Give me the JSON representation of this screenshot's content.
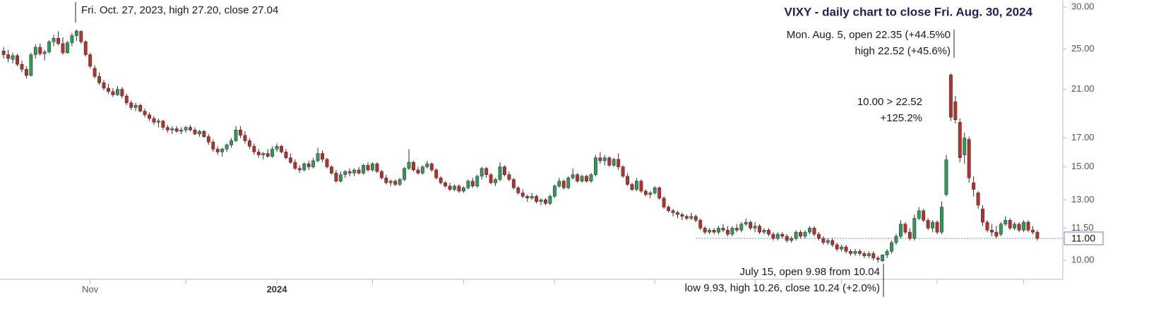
{
  "chart_data": {
    "type": "candlestick",
    "title": "VIXY - daily chart to close Fri. Aug. 30, 2024",
    "annotations": [
      {
        "lines": [
          "Fri. Oct. 27, 2023, high 27.20, close 27.04"
        ]
      },
      {
        "lines": [
          "Mon. Aug. 5, open 22.35 (+44.5%0",
          "high 22.52 (+45.6%)"
        ]
      },
      {
        "lines": [
          "10.00 > 22.52",
          "+125.2%"
        ]
      },
      {
        "lines": [
          "July 15, open 9.98 from 10.04",
          "low 9.93, high 10.26, close 10.24 (+2.0%)"
        ]
      }
    ],
    "up_color": "#2e9a5c",
    "down_color": "#b3322e",
    "last_price_color": "#5b7fc4",
    "log_scale": true,
    "xlim": [
      -0.8,
      232.6
    ],
    "xticks": [
      {
        "value": 19,
        "label": "Nov"
      },
      {
        "value": 40,
        "label": null
      },
      {
        "value": 60,
        "label": "2024"
      },
      {
        "value": 81,
        "label": null
      },
      {
        "value": 101,
        "label": null
      },
      {
        "value": 121,
        "label": null
      },
      {
        "value": 143,
        "label": null
      },
      {
        "value": 165,
        "label": null
      },
      {
        "value": 184,
        "label": null
      },
      {
        "value": 205,
        "label": null
      },
      {
        "value": 224,
        "label": null
      }
    ],
    "ylim": [
      9.21,
      30.93
    ],
    "yticks": [
      {
        "value": 10,
        "label": "10.00"
      },
      {
        "value": 11.5,
        "label": "11.50"
      },
      {
        "value": 13,
        "label": "13.00"
      },
      {
        "value": 15,
        "label": "15.00"
      },
      {
        "value": 17,
        "label": "17.00"
      },
      {
        "value": 21,
        "label": "21.00"
      },
      {
        "value": 25,
        "label": "25.00"
      },
      {
        "value": 30,
        "label": "30.00"
      }
    ],
    "last_price": {
      "value": 11,
      "label": "11.00"
    },
    "candles": [
      [
        24.8,
        25.2,
        24.0,
        24.4
      ],
      [
        24.4,
        24.9,
        23.6,
        24.0
      ],
      [
        23.9,
        24.6,
        23.5,
        24.3
      ],
      [
        24.3,
        24.5,
        23.2,
        23.4
      ],
      [
        23.4,
        23.8,
        22.6,
        22.9
      ],
      [
        22.9,
        23.2,
        22.0,
        22.3
      ],
      [
        22.3,
        24.6,
        22.2,
        24.4
      ],
      [
        24.4,
        25.5,
        24.0,
        25.2
      ],
      [
        25.2,
        25.6,
        24.3,
        24.5
      ],
      [
        24.5,
        24.9,
        23.8,
        24.7
      ],
      [
        24.7,
        26.0,
        24.5,
        25.8
      ],
      [
        25.8,
        26.6,
        25.3,
        26.2
      ],
      [
        26.2,
        27.0,
        25.4,
        25.6
      ],
      [
        25.6,
        26.3,
        24.4,
        24.6
      ],
      [
        24.6,
        25.9,
        24.5,
        25.7
      ],
      [
        25.7,
        26.8,
        25.3,
        26.5
      ],
      [
        26.5,
        27.2,
        25.9,
        27.04
      ],
      [
        27.0,
        27.1,
        25.6,
        25.8
      ],
      [
        25.8,
        26.0,
        24.2,
        24.4
      ],
      [
        24.4,
        24.6,
        23.0,
        23.2
      ],
      [
        23.0,
        23.3,
        22.0,
        22.2
      ],
      [
        22.2,
        22.6,
        21.4,
        21.6
      ],
      [
        21.6,
        21.9,
        20.9,
        21.1
      ],
      [
        21.1,
        21.5,
        20.6,
        20.8
      ],
      [
        20.8,
        21.1,
        20.3,
        20.5
      ],
      [
        20.5,
        21.3,
        20.4,
        21.0
      ],
      [
        21.0,
        21.2,
        20.2,
        20.4
      ],
      [
        20.4,
        20.6,
        19.6,
        19.8
      ],
      [
        19.8,
        20.0,
        19.2,
        19.4
      ],
      [
        19.4,
        19.8,
        19.1,
        19.6
      ],
      [
        19.6,
        19.7,
        19.0,
        19.1
      ],
      [
        19.1,
        19.3,
        18.6,
        18.8
      ],
      [
        18.8,
        19.0,
        18.3,
        18.5
      ],
      [
        18.5,
        18.7,
        18.0,
        18.2
      ],
      [
        18.2,
        18.5,
        17.8,
        18.3
      ],
      [
        18.3,
        18.4,
        17.6,
        17.8
      ],
      [
        17.8,
        18.0,
        17.4,
        17.6
      ],
      [
        17.6,
        17.9,
        17.3,
        17.7
      ],
      [
        17.7,
        17.9,
        17.4,
        17.5
      ],
      [
        17.5,
        17.8,
        17.3,
        17.6
      ],
      [
        17.6,
        17.9,
        17.4,
        17.8
      ],
      [
        17.8,
        18.0,
        17.5,
        17.6
      ],
      [
        17.6,
        17.8,
        17.2,
        17.3
      ],
      [
        17.3,
        17.6,
        17.1,
        17.5
      ],
      [
        17.5,
        17.6,
        17.0,
        17.1
      ],
      [
        17.1,
        17.3,
        16.5,
        16.7
      ],
      [
        16.7,
        16.9,
        16.0,
        16.2
      ],
      [
        16.2,
        16.4,
        15.8,
        16.0
      ],
      [
        16.0,
        16.3,
        15.7,
        16.2
      ],
      [
        16.2,
        16.6,
        16.0,
        16.5
      ],
      [
        16.5,
        17.0,
        16.3,
        16.8
      ],
      [
        16.8,
        17.9,
        16.7,
        17.6
      ],
      [
        17.6,
        17.9,
        17.0,
        17.2
      ],
      [
        17.2,
        17.5,
        16.6,
        16.8
      ],
      [
        16.8,
        17.0,
        16.2,
        16.4
      ],
      [
        16.4,
        16.6,
        15.8,
        16.0
      ],
      [
        16.0,
        16.2,
        15.6,
        15.8
      ],
      [
        15.8,
        16.0,
        15.5,
        15.9
      ],
      [
        15.9,
        16.2,
        15.6,
        15.7
      ],
      [
        15.7,
        16.4,
        15.6,
        16.2
      ],
      [
        16.2,
        16.6,
        16.0,
        16.4
      ],
      [
        16.4,
        16.5,
        15.9,
        16.0
      ],
      [
        16.0,
        16.2,
        15.5,
        15.6
      ],
      [
        15.6,
        15.9,
        15.2,
        15.3
      ],
      [
        15.3,
        15.5,
        14.8,
        14.9
      ],
      [
        14.9,
        15.1,
        14.6,
        14.8
      ],
      [
        14.8,
        15.3,
        14.7,
        15.2
      ],
      [
        15.2,
        15.4,
        14.8,
        15.0
      ],
      [
        15.0,
        15.6,
        14.9,
        15.4
      ],
      [
        15.4,
        16.3,
        15.3,
        15.9
      ],
      [
        15.9,
        16.1,
        15.3,
        15.5
      ],
      [
        15.5,
        15.6,
        14.9,
        15.0
      ],
      [
        15.0,
        15.1,
        14.5,
        14.6
      ],
      [
        14.6,
        14.8,
        14.0,
        14.1
      ],
      [
        14.1,
        14.7,
        14.0,
        14.5
      ],
      [
        14.5,
        14.8,
        14.3,
        14.7
      ],
      [
        14.7,
        14.9,
        14.4,
        14.6
      ],
      [
        14.6,
        14.9,
        14.4,
        14.8
      ],
      [
        14.8,
        15.0,
        14.5,
        14.6
      ],
      [
        14.6,
        15.2,
        14.5,
        15.1
      ],
      [
        15.1,
        15.3,
        14.7,
        14.8
      ],
      [
        14.8,
        15.3,
        14.7,
        15.2
      ],
      [
        15.2,
        15.3,
        14.6,
        14.7
      ],
      [
        14.7,
        14.8,
        14.2,
        14.3
      ],
      [
        14.3,
        14.5,
        13.9,
        14.0
      ],
      [
        14.0,
        14.2,
        13.8,
        14.1
      ],
      [
        14.1,
        14.2,
        13.8,
        13.9
      ],
      [
        13.9,
        14.3,
        13.8,
        14.2
      ],
      [
        14.2,
        15.0,
        14.1,
        14.9
      ],
      [
        14.9,
        16.2,
        14.8,
        15.3
      ],
      [
        15.3,
        15.4,
        14.7,
        14.8
      ],
      [
        14.8,
        15.0,
        14.5,
        14.6
      ],
      [
        14.6,
        15.1,
        14.5,
        15.0
      ],
      [
        15.0,
        15.4,
        14.9,
        15.2
      ],
      [
        15.2,
        15.3,
        14.7,
        14.8
      ],
      [
        14.8,
        14.9,
        14.2,
        14.3
      ],
      [
        14.3,
        14.4,
        13.9,
        14.0
      ],
      [
        14.0,
        14.1,
        13.7,
        13.8
      ],
      [
        13.8,
        14.0,
        13.5,
        13.6
      ],
      [
        13.6,
        13.9,
        13.5,
        13.8
      ],
      [
        13.8,
        13.9,
        13.4,
        13.5
      ],
      [
        13.5,
        13.8,
        13.4,
        13.7
      ],
      [
        13.7,
        14.2,
        13.6,
        14.1
      ],
      [
        14.1,
        14.3,
        13.7,
        13.8
      ],
      [
        13.8,
        14.5,
        13.7,
        14.4
      ],
      [
        14.4,
        15.0,
        14.2,
        14.9
      ],
      [
        14.9,
        15.0,
        14.3,
        14.5
      ],
      [
        14.5,
        14.6,
        13.9,
        14.0
      ],
      [
        14.0,
        14.3,
        13.8,
        14.2
      ],
      [
        14.2,
        15.3,
        14.1,
        15.0
      ],
      [
        15.0,
        15.1,
        14.4,
        14.5
      ],
      [
        14.5,
        14.7,
        14.1,
        14.2
      ],
      [
        14.2,
        14.3,
        13.6,
        13.7
      ],
      [
        13.7,
        13.8,
        13.3,
        13.4
      ],
      [
        13.4,
        13.6,
        13.1,
        13.2
      ],
      [
        13.2,
        13.3,
        12.9,
        13.1
      ],
      [
        13.1,
        13.4,
        13.0,
        13.2
      ],
      [
        13.2,
        13.3,
        12.8,
        12.9
      ],
      [
        12.9,
        13.1,
        12.7,
        13.0
      ],
      [
        13.0,
        13.1,
        12.7,
        12.8
      ],
      [
        12.8,
        13.3,
        12.7,
        13.2
      ],
      [
        13.2,
        13.9,
        13.1,
        13.8
      ],
      [
        13.8,
        14.3,
        13.7,
        14.1
      ],
      [
        14.1,
        14.2,
        13.6,
        13.7
      ],
      [
        13.7,
        14.4,
        13.6,
        14.3
      ],
      [
        14.3,
        14.9,
        14.2,
        14.5
      ],
      [
        14.5,
        14.6,
        14.0,
        14.1
      ],
      [
        14.1,
        14.5,
        14.0,
        14.4
      ],
      [
        14.4,
        14.5,
        14.0,
        14.1
      ],
      [
        14.1,
        14.6,
        14.0,
        14.5
      ],
      [
        14.5,
        15.8,
        14.4,
        15.6
      ],
      [
        15.6,
        16.0,
        15.2,
        15.4
      ],
      [
        15.4,
        15.8,
        15.1,
        15.6
      ],
      [
        15.6,
        15.7,
        15.0,
        15.1
      ],
      [
        15.1,
        15.6,
        15.0,
        15.5
      ],
      [
        15.5,
        15.9,
        14.8,
        15.0
      ],
      [
        15.0,
        15.1,
        14.3,
        14.4
      ],
      [
        14.4,
        14.6,
        13.8,
        13.9
      ],
      [
        13.9,
        14.0,
        13.5,
        13.6
      ],
      [
        13.6,
        14.3,
        13.5,
        14.1
      ],
      [
        14.1,
        14.2,
        13.4,
        13.5
      ],
      [
        13.5,
        13.6,
        13.2,
        13.3
      ],
      [
        13.3,
        13.5,
        13.1,
        13.4
      ],
      [
        13.4,
        13.8,
        13.3,
        13.7
      ],
      [
        13.7,
        13.8,
        13.0,
        13.1
      ],
      [
        13.1,
        13.2,
        12.5,
        12.6
      ],
      [
        12.6,
        12.7,
        12.3,
        12.4
      ],
      [
        12.4,
        12.5,
        12.1,
        12.3
      ],
      [
        12.3,
        12.4,
        12.0,
        12.2
      ],
      [
        12.2,
        12.3,
        11.9,
        12.1
      ],
      [
        12.1,
        12.2,
        11.9,
        12.0
      ],
      [
        12.0,
        12.3,
        11.9,
        12.1
      ],
      [
        12.1,
        12.2,
        11.8,
        11.9
      ],
      [
        11.9,
        12.0,
        11.4,
        11.5
      ],
      [
        11.5,
        11.6,
        11.2,
        11.3
      ],
      [
        11.3,
        11.5,
        11.2,
        11.4
      ],
      [
        11.4,
        11.5,
        11.2,
        11.3
      ],
      [
        11.3,
        11.6,
        11.2,
        11.5
      ],
      [
        11.5,
        11.7,
        11.3,
        11.4
      ],
      [
        11.4,
        11.6,
        11.1,
        11.2
      ],
      [
        11.2,
        11.6,
        11.1,
        11.5
      ],
      [
        11.5,
        11.7,
        11.3,
        11.4
      ],
      [
        11.4,
        11.8,
        11.3,
        11.7
      ],
      [
        11.7,
        12.0,
        11.6,
        11.8
      ],
      [
        11.8,
        11.9,
        11.4,
        11.5
      ],
      [
        11.5,
        11.8,
        11.3,
        11.6
      ],
      [
        11.6,
        11.7,
        11.2,
        11.3
      ],
      [
        11.3,
        11.5,
        11.2,
        11.4
      ],
      [
        11.4,
        11.5,
        11.1,
        11.2
      ],
      [
        11.2,
        11.3,
        10.9,
        11.0
      ],
      [
        11.0,
        11.3,
        10.9,
        11.2
      ],
      [
        11.2,
        11.3,
        11.0,
        11.1
      ],
      [
        11.1,
        11.2,
        10.8,
        10.9
      ],
      [
        10.9,
        11.1,
        10.8,
        11.0
      ],
      [
        11.0,
        11.4,
        10.9,
        11.3
      ],
      [
        11.3,
        11.4,
        11.0,
        11.1
      ],
      [
        11.1,
        11.4,
        11.0,
        11.3
      ],
      [
        11.3,
        11.6,
        11.2,
        11.5
      ],
      [
        11.5,
        11.6,
        11.1,
        11.2
      ],
      [
        11.2,
        11.3,
        10.9,
        11.0
      ],
      [
        11.0,
        11.1,
        10.7,
        10.8
      ],
      [
        10.8,
        11.0,
        10.7,
        10.9
      ],
      [
        10.9,
        11.0,
        10.6,
        10.7
      ],
      [
        10.7,
        10.8,
        10.4,
        10.5
      ],
      [
        10.5,
        10.7,
        10.4,
        10.6
      ],
      [
        10.6,
        10.7,
        10.3,
        10.4
      ],
      [
        10.4,
        10.5,
        10.2,
        10.3
      ],
      [
        10.3,
        10.5,
        10.2,
        10.4
      ],
      [
        10.4,
        10.5,
        10.2,
        10.3
      ],
      [
        10.3,
        10.4,
        10.1,
        10.2
      ],
      [
        10.2,
        10.4,
        10.1,
        10.3
      ],
      [
        10.3,
        10.4,
        10.0,
        10.1
      ],
      [
        10.1,
        10.2,
        9.9,
        10.04
      ],
      [
        9.98,
        10.26,
        9.93,
        10.24
      ],
      [
        10.24,
        10.5,
        10.1,
        10.4
      ],
      [
        10.4,
        10.9,
        10.3,
        10.8
      ],
      [
        10.8,
        11.2,
        10.7,
        11.1
      ],
      [
        11.1,
        11.9,
        11.0,
        11.7
      ],
      [
        11.7,
        11.8,
        11.2,
        11.3
      ],
      [
        11.3,
        11.5,
        10.9,
        11.0
      ],
      [
        11.0,
        12.2,
        10.9,
        12.0
      ],
      [
        12.0,
        12.6,
        11.9,
        12.4
      ],
      [
        12.4,
        12.5,
        11.8,
        11.9
      ],
      [
        11.9,
        12.0,
        11.4,
        11.5
      ],
      [
        11.5,
        11.9,
        11.3,
        11.8
      ],
      [
        11.8,
        11.9,
        11.2,
        11.3
      ],
      [
        11.3,
        12.9,
        11.2,
        12.6
      ],
      [
        13.3,
        15.8,
        13.2,
        15.47
      ],
      [
        22.35,
        22.52,
        18.3,
        18.6
      ],
      [
        19.9,
        20.4,
        18.1,
        18.4
      ],
      [
        18.2,
        18.5,
        15.3,
        15.6
      ],
      [
        15.8,
        17.4,
        15.2,
        17.0
      ],
      [
        16.9,
        17.1,
        14.0,
        14.3
      ],
      [
        14.0,
        14.4,
        13.2,
        13.6
      ],
      [
        13.4,
        13.5,
        12.5,
        12.7
      ],
      [
        12.5,
        12.7,
        11.6,
        11.8
      ],
      [
        11.8,
        11.9,
        11.3,
        11.4
      ],
      [
        11.4,
        11.7,
        11.1,
        11.3
      ],
      [
        11.3,
        11.6,
        11.0,
        11.1
      ],
      [
        11.2,
        11.8,
        11.1,
        11.7
      ],
      [
        11.7,
        12.1,
        11.6,
        11.9
      ],
      [
        11.9,
        12.0,
        11.4,
        11.5
      ],
      [
        11.5,
        11.8,
        11.4,
        11.7
      ],
      [
        11.7,
        11.8,
        11.3,
        11.4
      ],
      [
        11.4,
        11.9,
        11.3,
        11.8
      ],
      [
        11.8,
        11.9,
        11.3,
        11.4
      ],
      [
        11.4,
        11.6,
        11.2,
        11.3
      ],
      [
        11.3,
        11.4,
        10.9,
        11.0
      ]
    ]
  }
}
